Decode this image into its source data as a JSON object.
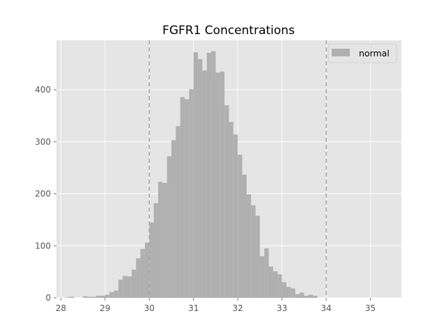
{
  "chart_data": {
    "type": "bar",
    "title": "FGFR1 Concentrations",
    "xlabel": "",
    "ylabel": "",
    "xlim": [
      27.9,
      35.7
    ],
    "ylim": [
      0,
      495
    ],
    "xticks": [
      28,
      29,
      30,
      31,
      32,
      33,
      34,
      35
    ],
    "yticks": [
      0,
      100,
      200,
      300,
      400
    ],
    "grid": true,
    "legend_position": "top-right",
    "bin_start": 28.1,
    "bin_width": 0.1,
    "reference_lines": [
      30,
      34
    ],
    "series": [
      {
        "name": "normal",
        "color": "#b0b0b0",
        "values": [
          1,
          2,
          0,
          0,
          3,
          2,
          2,
          4,
          4,
          6,
          11,
          14,
          35,
          42,
          41,
          54,
          76,
          94,
          106,
          145,
          182,
          223,
          221,
          272,
          303,
          330,
          386,
          382,
          401,
          472,
          459,
          437,
          471,
          474,
          433,
          435,
          370,
          338,
          314,
          275,
          237,
          199,
          178,
          158,
          80,
          95,
          60,
          51,
          45,
          30,
          21,
          18,
          7,
          10,
          4,
          6,
          4
        ]
      }
    ]
  },
  "colors": {
    "plot_bg": "#e5e5e5",
    "grid": "#ffffff",
    "bar": "#b0b0b0",
    "reference_line": "#a6a6a6"
  }
}
